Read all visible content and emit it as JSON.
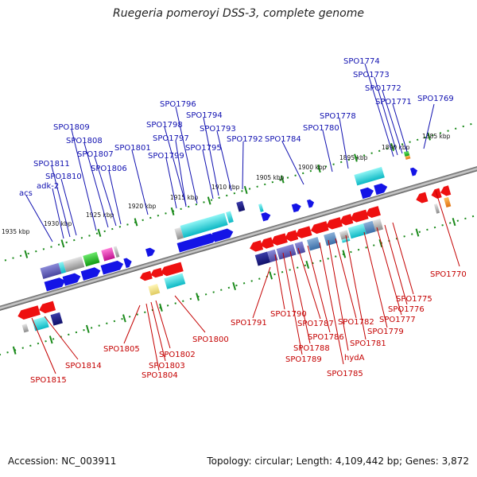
{
  "title": "Ruegeria pomeroyi DSS-3, complete genome",
  "footer": {
    "accession": "Accession: NC_003911",
    "stats": "Topology: circular; Length: 4,109,442 bp; Genes: 3,872"
  },
  "kbp_ticks": [
    "1885 kbp",
    "1890 kbp",
    "1895 kbp",
    "1900 kbp",
    "1905 kbp",
    "1910 kbp",
    "1915 kbp",
    "1920 kbp",
    "1925 kbp",
    "1930 kbp",
    "1935 kbp"
  ],
  "top_labels": [
    "SPO1774",
    "SPO1773",
    "SPO1772",
    "SPO1771",
    "SPO1769",
    "SPO1778",
    "SPO1780",
    "SPO1784",
    "SPO1796",
    "SPO1794",
    "SPO1798",
    "SPO1793",
    "SPO1792",
    "SPO1797",
    "SPO1795",
    "SPO1801",
    "SPO1799",
    "SPO1809",
    "SPO1808",
    "SPO1807",
    "SPO1806",
    "SPO1811",
    "SPO1810",
    "adk-2",
    "acs"
  ],
  "bottom_labels": [
    "SPO1770",
    "SPO1775",
    "SPO1776",
    "SPO1777",
    "SPO1779",
    "SPO1781",
    "SPO1782",
    "hydA",
    "SPO1785",
    "SPO1786",
    "SPO1787",
    "SPO1788",
    "SPO1789",
    "SPO1790",
    "SPO1791",
    "SPO1800",
    "SPO1802",
    "SPO1803",
    "SPO1804",
    "SPO1805",
    "SPO1814",
    "SPO1815"
  ]
}
